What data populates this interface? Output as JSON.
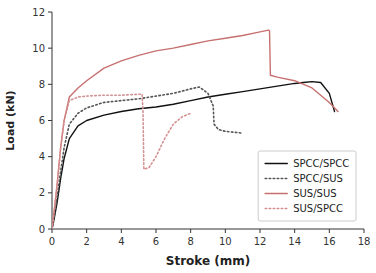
{
  "chart_data": {
    "type": "line",
    "xlabel": "Stroke (mm)",
    "ylabel": "Load (kN)",
    "xlim": [
      0,
      18
    ],
    "ylim": [
      0,
      12
    ],
    "xticks": [
      0,
      2,
      4,
      6,
      8,
      10,
      12,
      14,
      16,
      18
    ],
    "yticks": [
      0,
      2,
      4,
      6,
      8,
      10,
      12
    ],
    "grid": false,
    "legend": "lower right",
    "series": [
      {
        "name": "SPCC/SPCC",
        "color": "#111111",
        "line_style": "solid",
        "x": [
          0,
          0.05,
          0.15,
          0.3,
          0.5,
          0.7,
          1.0,
          1.5,
          2.0,
          3.0,
          4.0,
          5.0,
          6.0,
          7.0,
          8.0,
          9.0,
          10.0,
          11.0,
          12.0,
          13.0,
          14.0,
          14.5,
          15.0,
          15.5,
          16.0,
          16.3
        ],
        "values": [
          0,
          0.2,
          0.7,
          1.5,
          2.8,
          3.9,
          5.0,
          5.7,
          6.0,
          6.3,
          6.5,
          6.65,
          6.75,
          6.9,
          7.1,
          7.3,
          7.45,
          7.6,
          7.75,
          7.9,
          8.05,
          8.1,
          8.15,
          8.1,
          7.5,
          6.5
        ]
      },
      {
        "name": "SPCC/SUS",
        "color": "#555555",
        "line_style": "dotted",
        "x": [
          0,
          0.05,
          0.15,
          0.3,
          0.5,
          0.7,
          1.0,
          1.5,
          2.0,
          3.0,
          4.0,
          5.0,
          6.0,
          7.0,
          8.0,
          8.5,
          9.0,
          9.3,
          9.35,
          9.6,
          10.0,
          10.5,
          11.0
        ],
        "values": [
          0,
          0.3,
          0.9,
          1.8,
          3.2,
          4.5,
          5.8,
          6.4,
          6.7,
          7.0,
          7.1,
          7.2,
          7.35,
          7.5,
          7.75,
          7.85,
          7.5,
          6.8,
          5.8,
          5.5,
          5.4,
          5.35,
          5.3
        ]
      },
      {
        "name": "SUS/SUS",
        "color": "#c87070",
        "line_style": "solid",
        "x": [
          0,
          0.05,
          0.15,
          0.3,
          0.5,
          0.7,
          1.0,
          1.5,
          2.0,
          3.0,
          4.0,
          5.0,
          6.0,
          7.0,
          8.0,
          9.0,
          10.0,
          11.0,
          12.0,
          12.5,
          12.55,
          12.6,
          13.0,
          14.0,
          15.0,
          16.0,
          16.5
        ],
        "values": [
          0,
          0.4,
          1.2,
          2.5,
          4.5,
          6.0,
          7.3,
          7.8,
          8.2,
          8.9,
          9.3,
          9.6,
          9.85,
          10.0,
          10.2,
          10.4,
          10.55,
          10.7,
          10.9,
          11.0,
          10.95,
          8.5,
          8.4,
          8.2,
          7.8,
          7.0,
          6.5
        ]
      },
      {
        "name": "SUS/SPCC",
        "color": "#d49090",
        "line_style": "dotted",
        "x": [
          0,
          0.05,
          0.15,
          0.3,
          0.5,
          0.7,
          1.0,
          1.5,
          2.0,
          3.0,
          4.0,
          5.0,
          5.2,
          5.25,
          5.3,
          5.6,
          6.0,
          6.5,
          7.0,
          7.5,
          8.0
        ],
        "values": [
          0,
          0.4,
          1.2,
          2.5,
          4.5,
          6.0,
          7.1,
          7.3,
          7.35,
          7.4,
          7.4,
          7.45,
          7.45,
          6.5,
          3.3,
          3.4,
          4.0,
          5.0,
          5.8,
          6.2,
          6.4
        ]
      }
    ]
  }
}
